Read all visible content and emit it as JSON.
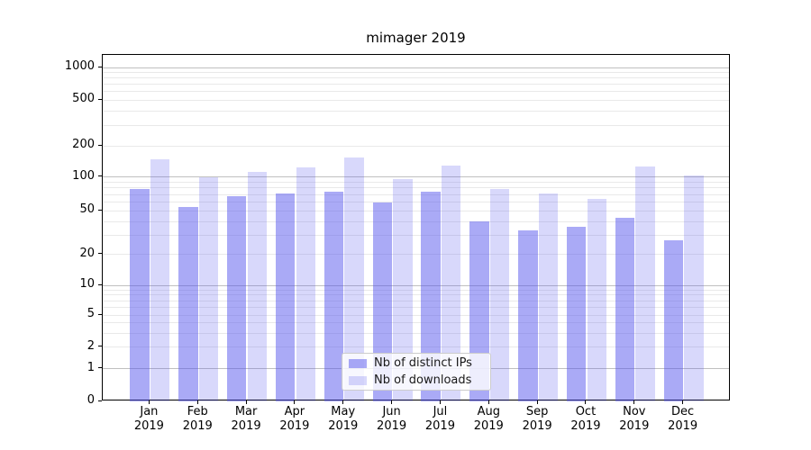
{
  "title": "mimager 2019",
  "legend": {
    "items": [
      {
        "label": "Nb of distinct IPs",
        "swatch_color": "rgba(82,82,237,0.49)",
        "rendered_color": "#a9a9f4"
      },
      {
        "label": "Nb of downloads",
        "swatch_color": "rgba(82,82,237,0.225)",
        "rendered_color": "#d9d9f8"
      }
    ],
    "position": "lower center"
  },
  "y_axis": {
    "tick_labels": [
      "1000",
      "500",
      "200",
      "100",
      "50",
      "20",
      "10",
      "5",
      "2",
      "1",
      "0"
    ]
  },
  "x_axis": {
    "tick_labels": [
      "Jan\n2019",
      "Feb\n2019",
      "Mar\n2019",
      "Apr\n2019",
      "May\n2019",
      "Jun\n2019",
      "Jul\n2019",
      "Aug\n2019",
      "Sep\n2019",
      "Oct\n2019",
      "Nov\n2019",
      "Dec\n2019"
    ]
  },
  "colors": {
    "bar_distinct_ips": "rgba(82,82,237,0.49)",
    "bar_downloads": "rgba(82,82,237,0.225)",
    "grid_major": "#c0c0c0",
    "grid_minor": "#e9e9e9",
    "spine": "#000000",
    "background": "#ffffff"
  },
  "chart_data": {
    "type": "bar",
    "title": "mimager 2019",
    "xlabel": "",
    "ylabel": "",
    "categories": [
      "Jan 2019",
      "Feb 2019",
      "Mar 2019",
      "Apr 2019",
      "May 2019",
      "Jun 2019",
      "Jul 2019",
      "Aug 2019",
      "Sep 2019",
      "Oct 2019",
      "Nov 2019",
      "Dec 2019"
    ],
    "series": [
      {
        "name": "Nb of distinct IPs",
        "values": [
          78,
          54,
          67,
          71,
          74,
          59,
          74,
          40,
          33,
          36,
          43,
          27
        ]
      },
      {
        "name": "Nb of downloads",
        "values": [
          149,
          100,
          113,
          123,
          153,
          96,
          128,
          78,
          71,
          64,
          126,
          104
        ]
      }
    ],
    "yscale": "symlog",
    "yticks": [
      0,
      1,
      2,
      5,
      10,
      20,
      50,
      100,
      200,
      500,
      1000
    ],
    "ylim": [
      0,
      1400
    ],
    "grid": true,
    "legend_position": "lower center"
  }
}
